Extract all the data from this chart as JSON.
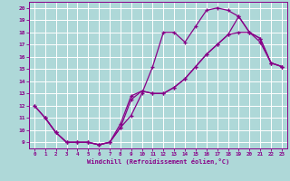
{
  "xlabel": "Windchill (Refroidissement éolien,°C)",
  "bg_color": "#aed8d8",
  "grid_color": "#d0eeee",
  "line_color": "#880088",
  "xlim": [
    -0.5,
    23.5
  ],
  "ylim": [
    8.5,
    20.5
  ],
  "xticks": [
    0,
    1,
    2,
    3,
    4,
    5,
    6,
    7,
    8,
    9,
    10,
    11,
    12,
    13,
    14,
    15,
    16,
    17,
    18,
    19,
    20,
    21,
    22,
    23
  ],
  "yticks": [
    9,
    10,
    11,
    12,
    13,
    14,
    15,
    16,
    17,
    18,
    19,
    20
  ],
  "line1_x": [
    0,
    1,
    2,
    3,
    4,
    5,
    6,
    7,
    8,
    9,
    10,
    11,
    12,
    13,
    14,
    15,
    16,
    17,
    18,
    19,
    20,
    21,
    22,
    23
  ],
  "line1_y": [
    12,
    11,
    9.8,
    9.0,
    9.0,
    9.0,
    8.8,
    9.0,
    10.2,
    11.2,
    13.0,
    15.2,
    18.0,
    18.0,
    17.2,
    18.5,
    19.8,
    20.0,
    19.8,
    19.3,
    18.0,
    17.2,
    15.5,
    15.2
  ],
  "line2_x": [
    1,
    2,
    3,
    4,
    5,
    6,
    7,
    8,
    9,
    10,
    11,
    12,
    13,
    14,
    15,
    16,
    17,
    18,
    19,
    20,
    21,
    22,
    23
  ],
  "line2_y": [
    11,
    9.8,
    9.0,
    9.0,
    9.0,
    8.8,
    9.0,
    10.2,
    12.5,
    13.2,
    13.0,
    13.0,
    13.5,
    14.2,
    15.2,
    16.2,
    17.0,
    17.8,
    18.0,
    18.0,
    17.5,
    15.5,
    15.2
  ],
  "line3_x": [
    0,
    1,
    2,
    3,
    4,
    5,
    6,
    7,
    8,
    9,
    10,
    11,
    12,
    13,
    14,
    15,
    16,
    17,
    18,
    19,
    20,
    21,
    22,
    23
  ],
  "line3_y": [
    12,
    11,
    9.8,
    9.0,
    9.0,
    9.0,
    8.8,
    9.0,
    10.5,
    12.8,
    13.2,
    13.0,
    13.0,
    13.5,
    14.2,
    15.2,
    16.2,
    17.0,
    17.8,
    19.3,
    18.0,
    17.5,
    15.5,
    15.2
  ]
}
